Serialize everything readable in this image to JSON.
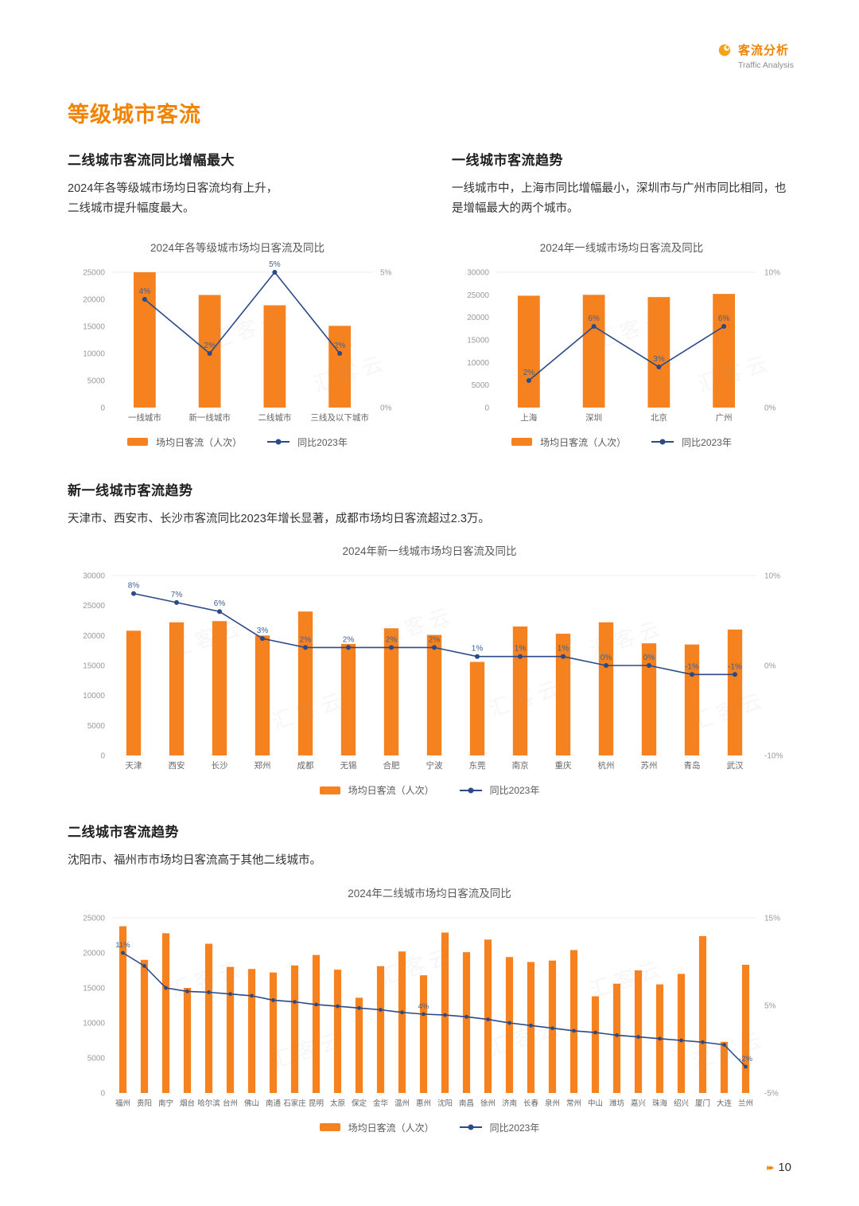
{
  "page": {
    "header": {
      "title_cn": "客流分析",
      "title_en": "Traffic Analysis"
    },
    "main_title": "等级城市客流",
    "page_number": "10",
    "footer_icon": "▸▸",
    "watermark": "汇客云"
  },
  "sections": {
    "s1": {
      "heading": "二线城市客流同比增幅最大",
      "body": "2024年各等级城市场均日客流均有上升，\n二线城市提升幅度最大。"
    },
    "s2": {
      "heading": "一线城市客流趋势",
      "body": "一线城市中，上海市同比增幅最小，深圳市与广州市同比相同，也是增幅最大的两个城市。"
    },
    "s3": {
      "heading": "新一线城市客流趋势",
      "body": "天津市、西安市、长沙市客流同比2023年增长显著，成都市场均日客流超过2.3万。"
    },
    "s4": {
      "heading": "二线城市客流趋势",
      "body": "沈阳市、福州市市场均日客流高于其他二线城市。"
    }
  },
  "legend": {
    "bar_label": "场均日客流（人次）",
    "line_label": "同比2023年"
  },
  "colors": {
    "bar": "#F5821F",
    "line": "#2B4A87",
    "point_label": "#3D6096",
    "axis_text": "#999999",
    "category_text": "#666666",
    "accent": "#F08300"
  },
  "chart_data": [
    {
      "type": "bar",
      "title": "2024年各等级城市场均日客流及同比",
      "categories": [
        "一线城市",
        "新一线城市",
        "二线城市",
        "三线及以下城市"
      ],
      "bar_series": {
        "name": "场均日客流（人次）",
        "values": [
          25000,
          20800,
          18900,
          15100
        ]
      },
      "line_series": {
        "name": "同比2023年",
        "values": [
          4,
          2,
          5,
          2
        ]
      },
      "point_labels": [
        "4%",
        "2%",
        "5%",
        "2%"
      ],
      "left_axis": {
        "min": 0,
        "max": 25000,
        "step": 5000
      },
      "right_axis": {
        "min": 0,
        "max": 5,
        "labels": [
          {
            "value": 5,
            "text": "5%"
          },
          {
            "value": 0,
            "text": "0%"
          }
        ]
      }
    },
    {
      "type": "bar",
      "title": "2024年一线城市场均日客流及同比",
      "categories": [
        "上海",
        "深圳",
        "北京",
        "广州"
      ],
      "bar_series": {
        "name": "场均日客流（人次）",
        "values": [
          24800,
          25000,
          24500,
          25200
        ]
      },
      "line_series": {
        "name": "同比2023年",
        "values": [
          2,
          6,
          3,
          6
        ]
      },
      "point_labels": [
        "2%",
        "6%",
        "3%",
        "6%"
      ],
      "left_axis": {
        "min": 0,
        "max": 30000,
        "step": 5000
      },
      "right_axis": {
        "min": 0,
        "max": 10,
        "labels": [
          {
            "value": 10,
            "text": "10%"
          },
          {
            "value": 0,
            "text": "0%"
          }
        ]
      }
    },
    {
      "type": "bar",
      "title": "2024年新一线城市场均日客流及同比",
      "categories": [
        "天津",
        "西安",
        "长沙",
        "郑州",
        "成都",
        "无锡",
        "合肥",
        "宁波",
        "东莞",
        "南京",
        "重庆",
        "杭州",
        "苏州",
        "青岛",
        "武汉"
      ],
      "bar_series": {
        "name": "场均日客流（人次）",
        "values": [
          20800,
          22200,
          22400,
          20000,
          24000,
          18600,
          21200,
          20100,
          15600,
          21500,
          20300,
          22200,
          18700,
          18500,
          21000
        ]
      },
      "line_series": {
        "name": "同比2023年",
        "values": [
          8,
          7,
          6,
          3,
          2,
          2,
          2,
          2,
          1,
          1,
          1,
          0,
          0,
          -1,
          -1
        ]
      },
      "point_labels": [
        "8%",
        "7%",
        "6%",
        "3%",
        "2%",
        "2%",
        "2%",
        "2%",
        "1%",
        "1%",
        "1%",
        "0%",
        "0%",
        "-1%",
        "-1%"
      ],
      "left_axis": {
        "min": 0,
        "max": 30000,
        "step": 5000
      },
      "right_axis": {
        "min": -10,
        "max": 10,
        "labels": [
          {
            "value": 10,
            "text": "10%"
          },
          {
            "value": 0,
            "text": "0%"
          },
          {
            "value": -10,
            "text": "-10%"
          }
        ]
      }
    },
    {
      "type": "bar",
      "title": "2024年二线城市场均日客流及同比",
      "categories": [
        "福州",
        "贵阳",
        "南宁",
        "烟台",
        "哈尔滨",
        "台州",
        "佛山",
        "南通",
        "石家庄",
        "昆明",
        "太原",
        "保定",
        "金华",
        "温州",
        "惠州",
        "沈阳",
        "南昌",
        "徐州",
        "济南",
        "长春",
        "泉州",
        "常州",
        "中山",
        "潍坊",
        "嘉兴",
        "珠海",
        "绍兴",
        "厦门",
        "大连",
        "兰州"
      ],
      "bar_series": {
        "name": "场均日客流（人次）",
        "values": [
          23800,
          19000,
          22800,
          15000,
          21300,
          18000,
          17700,
          17200,
          18200,
          19700,
          17600,
          13600,
          18100,
          20200,
          16800,
          22900,
          20100,
          21900,
          19400,
          18700,
          18900,
          20400,
          13800,
          15600,
          17500,
          15500,
          17000,
          22400,
          7300,
          18300
        ]
      },
      "line_series": {
        "name": "同比2023年",
        "values": [
          11,
          9.5,
          7,
          6.6,
          6.5,
          6.3,
          6.1,
          5.6,
          5.4,
          5.1,
          4.9,
          4.7,
          4.5,
          4.2,
          4,
          3.9,
          3.7,
          3.4,
          3,
          2.7,
          2.4,
          2.1,
          1.9,
          1.6,
          1.4,
          1.2,
          1,
          0.8,
          0.5,
          -2
        ]
      },
      "point_labels": [
        "11%",
        null,
        null,
        null,
        null,
        null,
        null,
        null,
        null,
        null,
        null,
        null,
        null,
        null,
        "4%",
        null,
        null,
        null,
        null,
        null,
        null,
        null,
        null,
        null,
        null,
        null,
        null,
        null,
        null,
        "-2%"
      ],
      "left_axis": {
        "min": 0,
        "max": 25000,
        "step": 5000
      },
      "right_axis": {
        "min": -5,
        "max": 15,
        "labels": [
          {
            "value": 15,
            "text": "15%"
          },
          {
            "value": 5,
            "text": "5%"
          },
          {
            "value": -5,
            "text": "-5%"
          }
        ]
      }
    }
  ]
}
